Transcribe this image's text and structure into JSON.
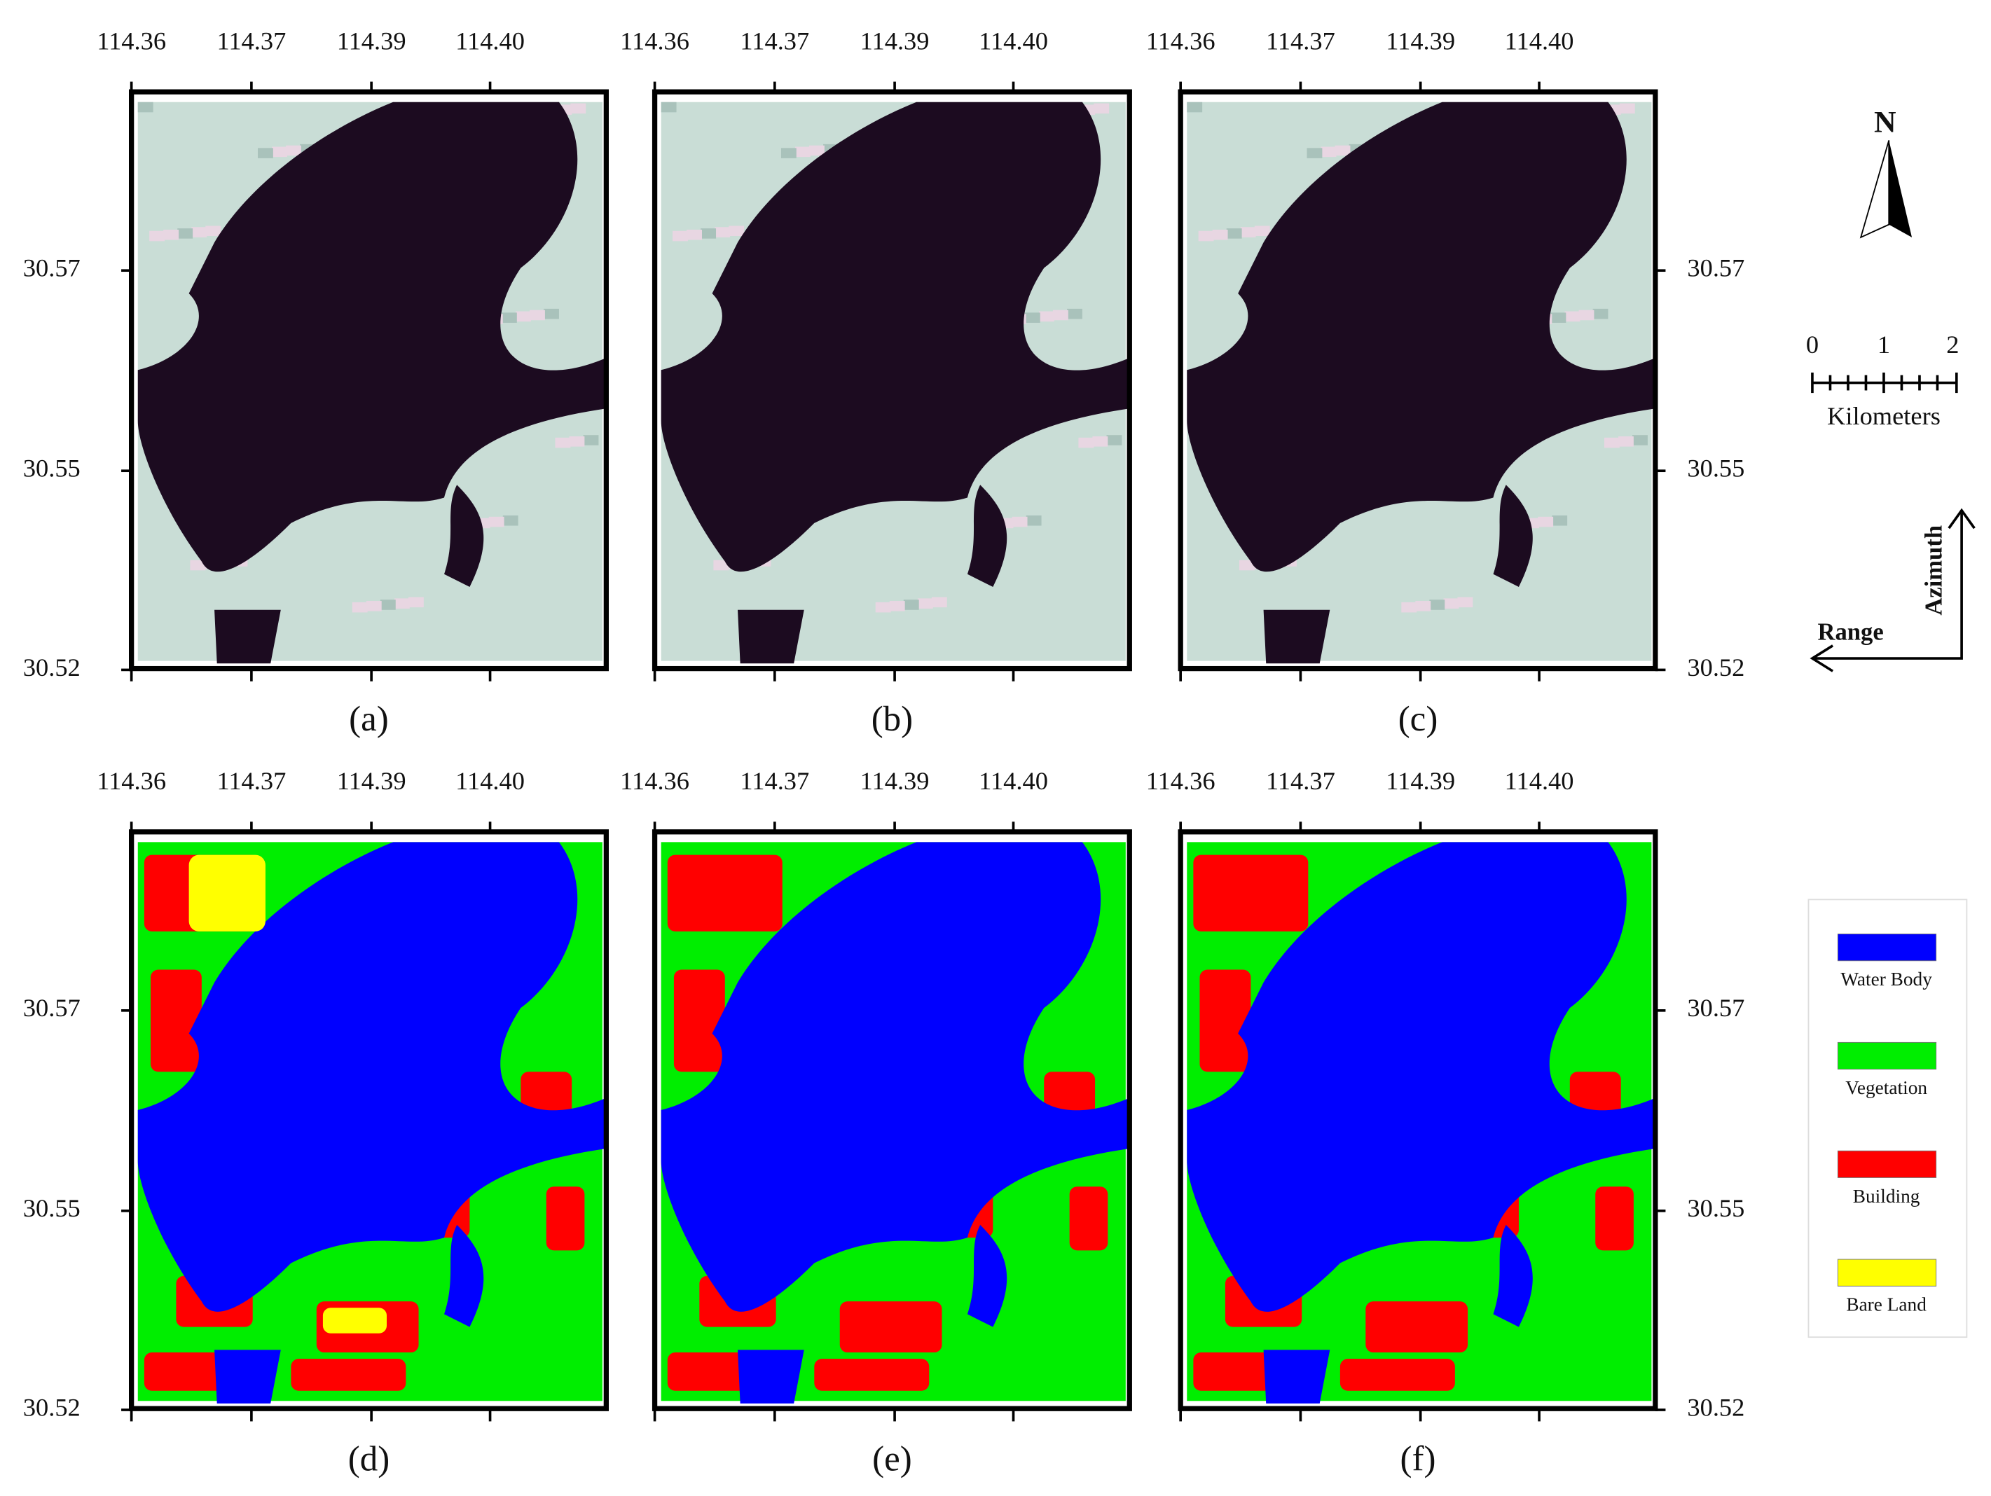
{
  "x_ticks": [
    "114.36",
    "114.37",
    "114.39",
    "114.40"
  ],
  "y_ticks": [
    "30.57",
    "30.55",
    "30.52"
  ],
  "panels": [
    "(a)",
    "(b)",
    "(c)",
    "(d)",
    "(e)",
    "(f)"
  ],
  "north": "N",
  "scale": {
    "ticks": [
      "0",
      "1",
      "2"
    ],
    "unit": "Kilometers"
  },
  "azimuth": "Azimuth",
  "range": "Range",
  "legend": [
    {
      "label": "Water Body",
      "color": "#0000ff"
    },
    {
      "label": "Vegetation",
      "color": "#00ee00"
    },
    {
      "label": "Building",
      "color": "#ff0000"
    },
    {
      "label": "Bare Land",
      "color": "#ffff00"
    }
  ]
}
